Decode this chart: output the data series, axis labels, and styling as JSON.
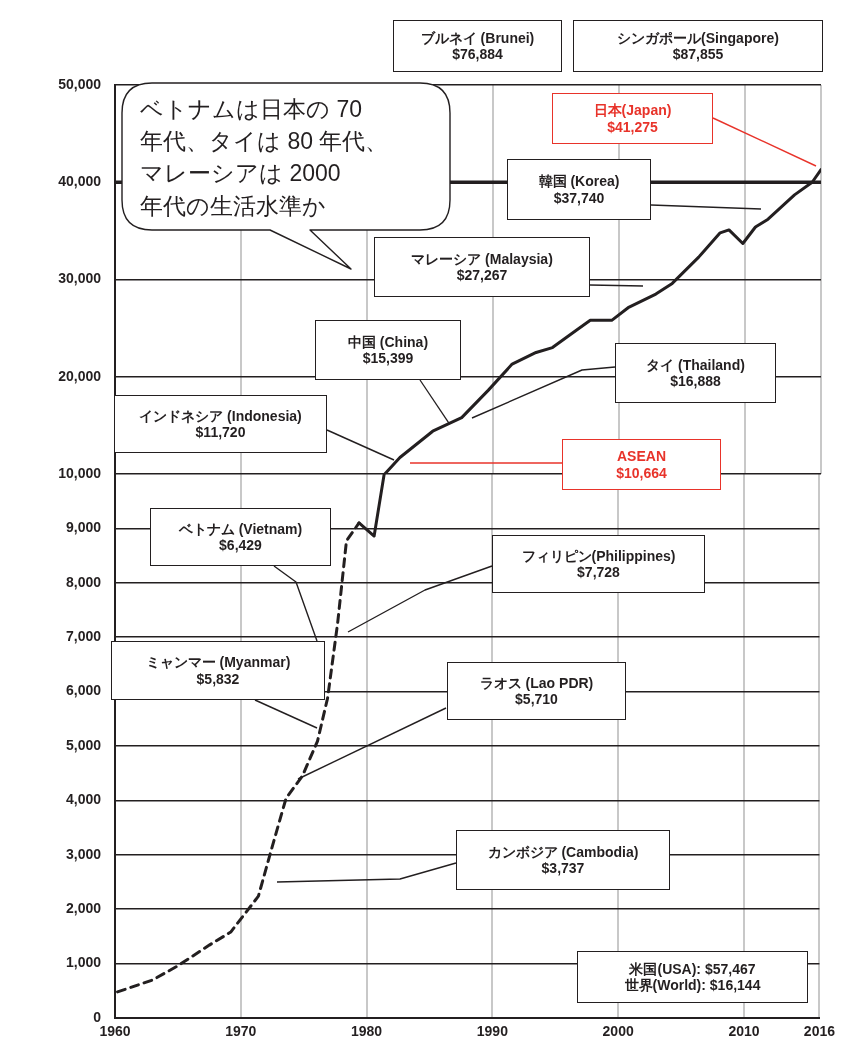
{
  "chart_data": [
    {
      "type": "line",
      "marker": "none",
      "grid": true,
      "legend": false,
      "tick_labels": "y",
      "xlim": [
        1960,
        2016
      ],
      "xticks": [
        1960,
        1970,
        1980,
        1990,
        2000,
        2010,
        2016
      ],
      "ylim": [
        10000,
        50000
      ],
      "yticks": [
        {
          "value": 10000,
          "label": "10,000"
        },
        {
          "value": 20000,
          "label": "20,000"
        },
        {
          "value": 30000,
          "label": "30,000"
        },
        {
          "value": 40000,
          "label": "40,000"
        },
        {
          "value": 50000,
          "label": "50,000"
        }
      ],
      "ref_lines": [
        {
          "axis": "y",
          "value": 40000,
          "color": "#231f20"
        }
      ],
      "series": [
        {
          "color": "#231f20",
          "line_style": "solid",
          "x": [
            1981.4,
            1982.6,
            1985.2,
            1987.5,
            1989.6,
            1991.5,
            1993.4,
            1994.7,
            1996.4,
            1997.7,
            1999.4,
            2000.7,
            2002.9,
            2004.2,
            2006.3,
            2008,
            2008.7,
            2009.8,
            2010.8,
            2011.8,
            2013.9,
            2015.3,
            2016
          ],
          "values": [
            10000,
            11700,
            14400,
            15800,
            18600,
            21300,
            22500,
            23000,
            24600,
            25800,
            25800,
            27100,
            28500,
            29600,
            32300,
            34800,
            35100,
            33700,
            35400,
            36200,
            38700,
            40000,
            41300
          ]
        }
      ],
      "annotations": [
        "ベトナムは日本の 70年代、タイは 80 年代、マレーシアは 2000年代の生活水準か",
        "ブルネイ (Brunei)\n$76,884",
        "シンガポール(Singapore)\n$87,855",
        "日本(Japan)\n$41,275",
        "韓国 (Korea)\n$37,740",
        "マレーシア (Malaysia)\n$27,267",
        {
          "text": "中国 (China)\n$15,399",
          "x": 1986.5,
          "y": 15200
        },
        "タイ (Thailand)\n$16,888",
        "インドネシア (Indonesia)\n$11,720",
        "ASEAN\n$10,664"
      ]
    },
    {
      "type": "line",
      "marker": "none",
      "grid": true,
      "legend": false,
      "xlim": [
        1960,
        2016
      ],
      "xticks": [
        1960,
        1970,
        1980,
        1990,
        2000,
        2010,
        2016
      ],
      "ylim": [
        0,
        10000
      ],
      "yticks": [
        0,
        {
          "value": 1000,
          "label": "1,000"
        },
        {
          "value": 2000,
          "label": "2,000"
        },
        {
          "value": 3000,
          "label": "3,000"
        },
        {
          "value": 4000,
          "label": "4,000"
        },
        {
          "value": 5000,
          "label": "5,000"
        },
        {
          "value": 6000,
          "label": "6,000"
        },
        {
          "value": 7000,
          "label": "7,000"
        },
        {
          "value": 8000,
          "label": "8,000"
        },
        {
          "value": 9000,
          "label": "9,000"
        }
      ],
      "series": [
        {
          "color": "#231f20",
          "line_style": "dashed",
          "x": [
            1960.2,
            1963,
            1965,
            1967.5,
            1969.2,
            1971.4,
            1972.4,
            1973.6,
            1974.9,
            1976.1,
            1976.9,
            1977.7,
            1978.4,
            1979.4
          ],
          "values": [
            480,
            700,
            960,
            1340,
            1580,
            2240,
            3070,
            4040,
            4450,
            5090,
            5880,
            7260,
            8770,
            9100
          ]
        },
        {
          "color": "#231f20",
          "line_style": "solid",
          "x": [
            1979.4,
            1980.6,
            1981.4
          ],
          "values": [
            9100,
            8860,
            10000
          ]
        }
      ],
      "annotations": [
        "ベトナム (Vietnam)\n$6,429",
        "フィリピン(Philippines)\n$7,728",
        "ミャンマー (Myanmar)\n$5,832",
        "ラオス (Lao PDR)\n$5,710",
        "カンボジア (Cambodia)\n$3,737",
        "米国(USA): $57,467\n世界(World): $16,144"
      ]
    }
  ]
}
